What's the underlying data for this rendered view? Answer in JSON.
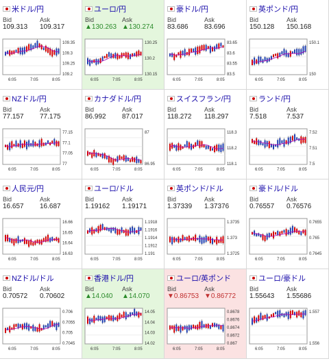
{
  "colors": {
    "up": "#2a8a2a",
    "down": "#c03030",
    "candle_up": "#d40000",
    "candle_down": "#1f3fb0",
    "ma": "#b000b0",
    "ma2": "#2bb0e0"
  },
  "common": {
    "bid_label": "Bid",
    "ask_label": "Ask",
    "x_ticks": [
      "6:05",
      "7:05",
      "8:05"
    ]
  },
  "pairs": [
    {
      "name": "米ドル/円",
      "bid": "109.313",
      "ask": "109.317",
      "trend": "none",
      "yticks": [
        "109.35",
        "109.3",
        "109.25",
        "109.2"
      ]
    },
    {
      "name": "ユーロ/円",
      "bid": "130.263",
      "ask": "130.274",
      "trend": "up",
      "arrow": "▲",
      "yticks": [
        "130.25",
        "130.2",
        "130.15"
      ]
    },
    {
      "name": "豪ドル/円",
      "bid": "83.686",
      "ask": "83.696",
      "trend": "none",
      "yticks": [
        "83.65",
        "83.6",
        "83.55",
        "83.5"
      ]
    },
    {
      "name": "英ポンド/円",
      "bid": "150.128",
      "ask": "150.168",
      "trend": "none",
      "yticks": [
        "150.1",
        "150"
      ]
    },
    {
      "name": "NZドル/円",
      "bid": "77.157",
      "ask": "77.175",
      "trend": "none",
      "yticks": [
        "77.15",
        "77.1",
        "77.05",
        "77"
      ]
    },
    {
      "name": "カナダドル/円",
      "bid": "86.992",
      "ask": "87.017",
      "trend": "none",
      "yticks": [
        "87",
        "86.95"
      ]
    },
    {
      "name": "スイスフラン/円",
      "bid": "118.272",
      "ask": "118.297",
      "trend": "none",
      "yticks": [
        "118.3",
        "118.2",
        "118.1"
      ]
    },
    {
      "name": "ランド/円",
      "bid": "7.518",
      "ask": "7.537",
      "trend": "none",
      "yticks": [
        "7.52",
        "7.51",
        "7.5"
      ]
    },
    {
      "name": "人民元/円",
      "bid": "16.657",
      "ask": "16.687",
      "trend": "none",
      "yticks": [
        "16.66",
        "16.65",
        "16.64",
        "16.63"
      ]
    },
    {
      "name": "ユーロ/ドル",
      "bid": "1.19162",
      "ask": "1.19171",
      "trend": "none",
      "yticks": [
        "1.1918",
        "1.1916",
        "1.1914",
        "1.1912",
        "1.191"
      ]
    },
    {
      "name": "英ポンド/ドル",
      "bid": "1.37339",
      "ask": "1.37376",
      "trend": "none",
      "yticks": [
        "1.3735",
        "1.373",
        "1.3725"
      ]
    },
    {
      "name": "豪ドル/ドル",
      "bid": "0.76557",
      "ask": "0.76576",
      "trend": "none",
      "yticks": [
        "0.7655",
        "0.765",
        "0.7645"
      ]
    },
    {
      "name": "NZドル/ドル",
      "bid": "0.70572",
      "ask": "0.70602",
      "trend": "none",
      "yticks": [
        "0.706",
        "0.7055",
        "0.705",
        "0.7045"
      ]
    },
    {
      "name": "香港ドル/円",
      "bid": "14.040",
      "ask": "14.070",
      "trend": "up",
      "arrow": "▲",
      "yticks": [
        "14.05",
        "14.04",
        "14.03",
        "14.02"
      ]
    },
    {
      "name": "ユーロ/英ポンド",
      "bid": "0.86753",
      "ask": "0.86772",
      "trend": "down",
      "arrow": "▼",
      "yticks": [
        "0.8678",
        "0.8676",
        "0.8674",
        "0.8672",
        "0.867"
      ]
    },
    {
      "name": "ユーロ/豪ドル",
      "bid": "1.55643",
      "ask": "1.55686",
      "trend": "none",
      "yticks": [
        "1.557",
        "1.556"
      ]
    }
  ]
}
